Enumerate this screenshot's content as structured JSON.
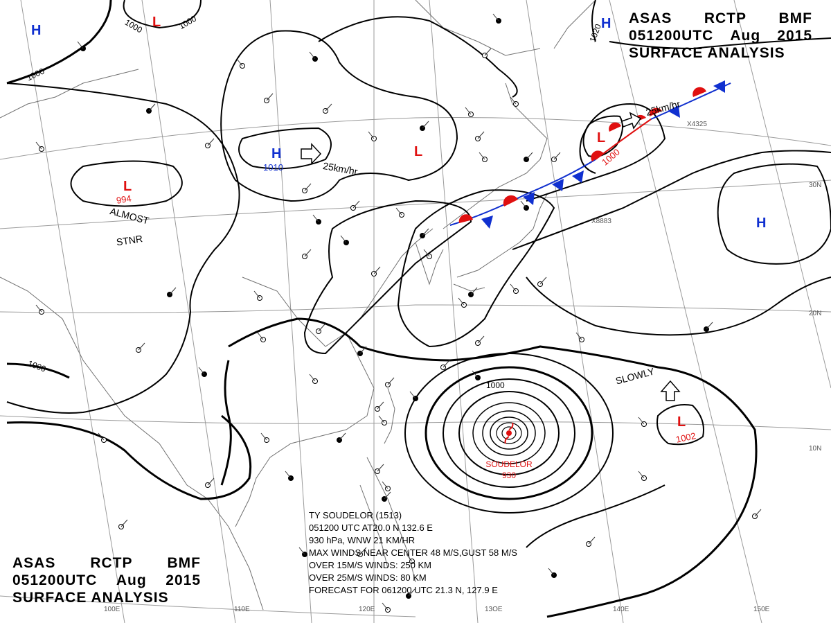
{
  "header": {
    "line1": [
      "ASAS",
      "RCTP",
      "BMF"
    ],
    "line2": [
      "051200UTC",
      "Aug",
      "2015"
    ],
    "line3": "SURFACE ANALYSIS"
  },
  "typhoon_box": {
    "line1": "TY  SOUDELOR  (1513)",
    "line2": "051200 UTC  AT20.0 N  132.6 E",
    "line3": "930 hPa, WNW  21 KM/HR",
    "line4": "MAX WINDS NEAR CENTER 48 M/S,GUST 58 M/S",
    "line5": "OVER 15M/S WINDS: 250 KM",
    "line6": "OVER 25M/S WINDS: 80 KM",
    "line7": "FORECAST FOR 061200 UTC 21.3 N, 127.9 E"
  },
  "typhoon": {
    "name": "SOUDELOR",
    "pressure": "930"
  },
  "pressure_centers": [
    {
      "type": "H",
      "color": "#1030d0"
    },
    {
      "type": "L",
      "color": "#e01010"
    },
    {
      "type": "H",
      "color": "#1030d0"
    },
    {
      "type": "L",
      "color": "#e01010",
      "value": "994"
    },
    {
      "type": "H",
      "color": "#1030d0",
      "value": "1010"
    },
    {
      "type": "L",
      "color": "#e01010"
    },
    {
      "type": "L",
      "color": "#e01010",
      "value": "1000"
    },
    {
      "type": "H",
      "color": "#1030d0"
    },
    {
      "type": "L",
      "color": "#e01010",
      "value": "1002"
    }
  ],
  "isobar_labels": [
    "1000",
    "1000",
    "1000",
    "1020",
    "1000",
    "1000"
  ],
  "motion_labels": {
    "high": "25km/hr",
    "low": "25km/hr",
    "slowly": "SLOWLY",
    "stationary_1": "ALMOST",
    "stationary_2": "STNR"
  },
  "longitude_labels": [
    "110E",
    "120E",
    "13OE",
    "140E",
    "150E",
    "100E"
  ],
  "latitude_labels": [
    "30N",
    "20N",
    "10N"
  ],
  "station_codes": [
    "X8883",
    "X4325"
  ],
  "colors": {
    "high": "#1030d0",
    "low": "#e01010",
    "isobar": "#000000",
    "grid": "#9a9a9a",
    "coast": "#707070"
  }
}
